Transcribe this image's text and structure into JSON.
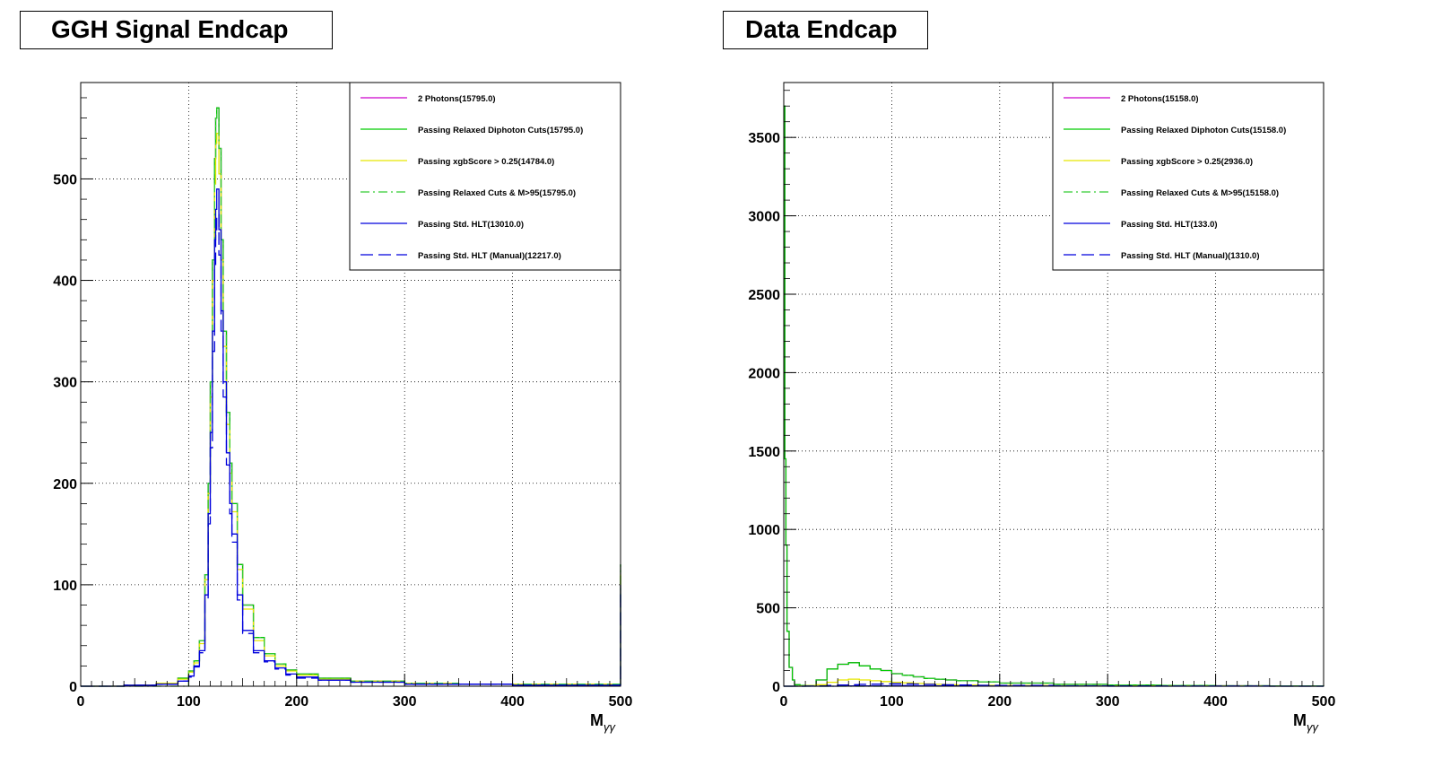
{
  "panels": [
    {
      "title": "GGH Signal Endcap"
    },
    {
      "title": "Data Endcap"
    }
  ],
  "chart_data": [
    {
      "type": "line",
      "title": "GGH Signal Endcap",
      "xlabel": "M_{γγ}",
      "ylabel": "",
      "xlim": [
        0,
        500
      ],
      "ylim": [
        0,
        595
      ],
      "xticks": [
        0,
        100,
        200,
        300,
        400,
        500
      ],
      "yticks": [
        0,
        100,
        200,
        300,
        400,
        500
      ],
      "grid": true,
      "legend_position": "top-right",
      "x": [
        0,
        40,
        70,
        90,
        100,
        105,
        110,
        115,
        118,
        120,
        122,
        124,
        125,
        126,
        128,
        130,
        132,
        135,
        138,
        140,
        145,
        150,
        160,
        170,
        180,
        190,
        200,
        220,
        250,
        300,
        350,
        400,
        450,
        498,
        500
      ],
      "series": [
        {
          "name": "2 Photons(15795.0)",
          "color": "#cc00cc",
          "style": "solid",
          "values": [
            0,
            1,
            3,
            8,
            15,
            25,
            45,
            110,
            200,
            300,
            420,
            520,
            560,
            570,
            530,
            440,
            350,
            270,
            220,
            180,
            120,
            80,
            48,
            32,
            22,
            16,
            12,
            8,
            5,
            3,
            2,
            2,
            2,
            2,
            120
          ]
        },
        {
          "name": "Passing Relaxed Diphoton Cuts(15795.0)",
          "color": "#00cc00",
          "style": "solid",
          "values": [
            0,
            1,
            3,
            8,
            15,
            25,
            45,
            110,
            200,
            300,
            420,
            520,
            560,
            570,
            530,
            440,
            350,
            270,
            220,
            180,
            120,
            80,
            48,
            32,
            22,
            16,
            12,
            8,
            5,
            3,
            2,
            2,
            2,
            2,
            120
          ]
        },
        {
          "name": "Passing xgbScore > 0.25(14784.0)",
          "color": "#e6e600",
          "style": "solid",
          "values": [
            0,
            1,
            3,
            7,
            14,
            23,
            42,
            105,
            190,
            285,
            400,
            495,
            535,
            545,
            505,
            420,
            335,
            258,
            210,
            172,
            115,
            76,
            45,
            30,
            20,
            15,
            11,
            7,
            5,
            3,
            2,
            2,
            2,
            2,
            110
          ]
        },
        {
          "name": "Passing Relaxed Cuts & M>95(15795.0)",
          "color": "#33cc33",
          "style": "dashdot",
          "values": [
            0,
            0,
            0,
            0,
            15,
            25,
            45,
            110,
            200,
            300,
            420,
            520,
            560,
            570,
            530,
            440,
            350,
            270,
            220,
            180,
            120,
            80,
            48,
            32,
            22,
            16,
            12,
            8,
            5,
            3,
            2,
            2,
            2,
            2,
            120
          ]
        },
        {
          "name": "Passing Std. HLT(13010.0)",
          "color": "#0000dd",
          "style": "solid",
          "values": [
            0,
            1,
            2,
            5,
            10,
            20,
            35,
            90,
            170,
            250,
            350,
            440,
            470,
            490,
            450,
            370,
            300,
            230,
            180,
            150,
            90,
            55,
            35,
            25,
            18,
            12,
            9,
            6,
            4,
            2,
            2,
            1,
            1,
            1,
            100
          ]
        },
        {
          "name": "Passing Std. HLT (Manual)(12217.0)",
          "color": "#0000dd",
          "style": "dashed",
          "values": [
            0,
            1,
            2,
            5,
            9,
            19,
            33,
            85,
            160,
            235,
            330,
            415,
            445,
            465,
            425,
            350,
            285,
            218,
            170,
            142,
            85,
            52,
            33,
            24,
            17,
            11,
            8,
            6,
            4,
            2,
            2,
            1,
            1,
            1,
            95
          ]
        }
      ]
    },
    {
      "type": "line",
      "title": "Data Endcap",
      "xlabel": "M_{γγ}",
      "ylabel": "",
      "xlim": [
        0,
        500
      ],
      "ylim": [
        0,
        3850
      ],
      "xticks": [
        0,
        100,
        200,
        300,
        400,
        500
      ],
      "yticks": [
        0,
        500,
        1000,
        1500,
        2000,
        2500,
        3000,
        3500
      ],
      "grid": true,
      "legend_position": "top-right",
      "x": [
        0,
        1,
        2,
        3,
        5,
        8,
        10,
        15,
        20,
        30,
        40,
        50,
        60,
        70,
        80,
        90,
        100,
        110,
        120,
        130,
        140,
        150,
        160,
        180,
        200,
        250,
        300,
        350,
        400,
        450,
        500
      ],
      "series": [
        {
          "name": "2 Photons(15158.0)",
          "color": "#cc00cc",
          "style": "solid",
          "values": [
            3700,
            1450,
            900,
            350,
            120,
            40,
            10,
            5,
            5,
            40,
            110,
            140,
            150,
            130,
            110,
            100,
            80,
            70,
            60,
            50,
            45,
            40,
            35,
            28,
            20,
            12,
            8,
            5,
            3,
            2,
            1
          ]
        },
        {
          "name": "Passing Relaxed Diphoton Cuts(15158.0)",
          "color": "#00cc00",
          "style": "solid",
          "values": [
            3700,
            1450,
            900,
            350,
            120,
            40,
            10,
            5,
            5,
            40,
            110,
            140,
            150,
            130,
            110,
            100,
            80,
            70,
            60,
            50,
            45,
            40,
            35,
            28,
            20,
            12,
            8,
            5,
            3,
            2,
            1
          ]
        },
        {
          "name": "Passing xgbScore > 0.25(2936.0)",
          "color": "#e6e600",
          "style": "solid",
          "values": [
            0,
            0,
            0,
            0,
            0,
            0,
            0,
            2,
            4,
            10,
            25,
            40,
            45,
            40,
            35,
            30,
            25,
            22,
            18,
            15,
            12,
            10,
            8,
            6,
            5,
            3,
            2,
            1,
            1,
            0,
            0
          ]
        },
        {
          "name": "Passing Relaxed Cuts & M>95(15158.0)",
          "color": "#33cc33",
          "style": "dashdot",
          "values": [
            0,
            0,
            0,
            0,
            0,
            0,
            0,
            0,
            0,
            0,
            0,
            0,
            0,
            0,
            0,
            0,
            80,
            70,
            60,
            50,
            45,
            40,
            35,
            28,
            20,
            12,
            8,
            5,
            3,
            2,
            1
          ]
        },
        {
          "name": "Passing Std. HLT(133.0)",
          "color": "#0000dd",
          "style": "solid",
          "values": [
            0,
            0,
            0,
            0,
            0,
            0,
            0,
            0,
            0,
            0,
            0,
            1,
            2,
            2,
            3,
            3,
            4,
            4,
            3,
            3,
            2,
            2,
            2,
            1,
            1,
            1,
            0,
            0,
            0,
            0,
            0
          ]
        },
        {
          "name": "Passing Std. HLT (Manual)(1310.0)",
          "color": "#0000dd",
          "style": "dashed",
          "values": [
            0,
            0,
            0,
            0,
            0,
            0,
            0,
            0,
            1,
            2,
            5,
            8,
            10,
            12,
            14,
            15,
            16,
            15,
            14,
            12,
            10,
            9,
            8,
            6,
            5,
            3,
            2,
            1,
            1,
            0,
            0
          ]
        }
      ]
    }
  ]
}
